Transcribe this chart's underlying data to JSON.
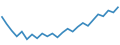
{
  "y_values": [
    68,
    60,
    53,
    47,
    52,
    44,
    49,
    45,
    50,
    47,
    50,
    46,
    51,
    55,
    52,
    57,
    61,
    58,
    64,
    70,
    68,
    74,
    72,
    78
  ],
  "line_color": "#3a8abf",
  "line_width": 1.2,
  "bg_color": "#ffffff",
  "ylim": [
    38,
    85
  ],
  "xlim": [
    -0.3,
    23.3
  ]
}
